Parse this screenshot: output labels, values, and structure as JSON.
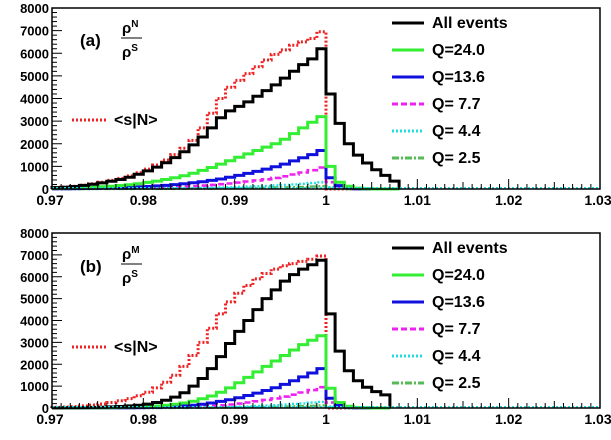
{
  "colors": {
    "all_events": "#000000",
    "q24": "#33ee33",
    "q13_6": "#1010dd",
    "q7_7": "#ee22ee",
    "q4_4": "#22dddd",
    "q2_5": "#55bb55",
    "sN": "#ee2222",
    "axis": "#000000",
    "background": "#ffffff"
  },
  "chart_data": [
    {
      "type": "line",
      "subtype": "step-histogram",
      "panel_label": "(a)",
      "ratio": {
        "numerator": "ρ",
        "numerator_sup": "N",
        "denominator": "ρ",
        "denominator_sup": "S"
      },
      "xlim": [
        0.97,
        1.03
      ],
      "ylim": [
        0,
        8000
      ],
      "x_ticks": [
        "0.97",
        "0.98",
        "0.99",
        "1",
        "1.01",
        "1.02",
        "1.03"
      ],
      "y_ticks": [
        "0",
        "1000",
        "2000",
        "3000",
        "4000",
        "5000",
        "6000",
        "7000",
        "8000"
      ],
      "bin_edges": [
        0.97,
        0.971,
        0.972,
        0.973,
        0.974,
        0.975,
        0.976,
        0.977,
        0.978,
        0.979,
        0.98,
        0.981,
        0.982,
        0.983,
        0.984,
        0.985,
        0.986,
        0.987,
        0.988,
        0.989,
        0.99,
        0.991,
        0.992,
        0.993,
        0.994,
        0.995,
        0.996,
        0.997,
        0.998,
        0.999,
        1.0,
        1.001,
        1.002,
        1.003,
        1.004,
        1.005,
        1.006,
        1.007,
        1.008,
        1.009,
        1.01,
        1.011,
        1.012,
        1.013,
        1.014,
        1.015,
        1.016,
        1.017,
        1.018,
        1.019,
        1.02,
        1.021,
        1.022,
        1.023,
        1.024,
        1.025,
        1.026,
        1.027,
        1.028,
        1.029,
        1.03
      ],
      "series": [
        {
          "name": "All events",
          "color_key": "all_events",
          "style": "solid",
          "legend_sample": "solid",
          "values": [
            60,
            80,
            110,
            160,
            210,
            270,
            340,
            420,
            520,
            650,
            800,
            970,
            1160,
            1390,
            1650,
            1950,
            2300,
            2700,
            3150,
            3450,
            3650,
            3850,
            4100,
            4350,
            4600,
            4900,
            5200,
            5500,
            5750,
            6200,
            4200,
            2900,
            2000,
            1500,
            1150,
            850,
            600,
            350
          ]
        },
        {
          "name": "Q=24.0",
          "color_key": "q24",
          "style": "solid",
          "legend_sample": "solid",
          "values": [
            25,
            35,
            45,
            60,
            80,
            100,
            125,
            155,
            190,
            235,
            290,
            350,
            420,
            500,
            590,
            700,
            820,
            950,
            1100,
            1250,
            1400,
            1550,
            1700,
            1850,
            2000,
            2200,
            2450,
            2700,
            2950,
            3200,
            1000,
            300,
            120,
            40,
            10,
            0,
            0,
            0
          ]
        },
        {
          "name": "Q=13.6",
          "color_key": "q13_6",
          "style": "solid",
          "legend_sample": "solid",
          "values": [
            10,
            14,
            18,
            24,
            32,
            40,
            50,
            62,
            76,
            92,
            110,
            135,
            160,
            195,
            230,
            275,
            320,
            380,
            440,
            520,
            600,
            690,
            780,
            880,
            980,
            1100,
            1240,
            1380,
            1520,
            1700,
            500,
            150,
            50,
            15,
            5,
            0,
            0,
            0
          ]
        },
        {
          "name": "Q= 7.7",
          "color_key": "q7_7",
          "style": "dashed",
          "legend_sample": "dashed",
          "values": [
            5,
            7,
            9,
            12,
            15,
            19,
            24,
            30,
            36,
            44,
            52,
            62,
            74,
            88,
            105,
            125,
            150,
            180,
            210,
            245,
            285,
            330,
            380,
            430,
            490,
            560,
            640,
            730,
            830,
            950,
            300,
            80,
            25,
            8,
            0,
            0,
            0,
            0
          ]
        },
        {
          "name": "Q= 4.4",
          "color_key": "q4_4",
          "style": "dotted",
          "legend_sample": "dotted",
          "values": [
            2,
            3,
            4,
            5,
            6,
            7,
            9,
            11,
            13,
            15,
            18,
            21,
            25,
            30,
            35,
            41,
            48,
            56,
            66,
            77,
            90,
            104,
            120,
            138,
            158,
            180,
            205,
            232,
            262,
            295,
            80,
            20,
            5,
            0,
            0,
            0,
            0,
            0
          ]
        },
        {
          "name": "Q= 2.5",
          "color_key": "q2_5",
          "style": "dashdot",
          "legend_sample": "dashdot",
          "values": [
            1,
            1,
            2,
            2,
            3,
            3,
            4,
            5,
            6,
            7,
            8,
            9,
            11,
            13,
            15,
            18,
            21,
            24,
            28,
            33,
            38,
            44,
            50,
            57,
            65,
            74,
            84,
            95,
            107,
            120,
            30,
            8,
            2,
            0,
            0,
            0,
            0,
            0
          ]
        },
        {
          "name": "<s|N>",
          "color_key": "sN",
          "style": "dotted",
          "legend_sample": "dotted",
          "values": [
            70,
            90,
            120,
            170,
            230,
            300,
            380,
            470,
            580,
            720,
            880,
            1060,
            1280,
            1520,
            1800,
            2150,
            2700,
            3350,
            4000,
            4500,
            4800,
            5100,
            5400,
            5700,
            5950,
            6150,
            6350,
            6500,
            6650,
            6950,
            0,
            0,
            0,
            0,
            0,
            0,
            0,
            0
          ]
        }
      ]
    },
    {
      "type": "line",
      "subtype": "step-histogram",
      "panel_label": "(b)",
      "ratio": {
        "numerator": "ρ",
        "numerator_sup": "M",
        "denominator": "ρ",
        "denominator_sup": "S"
      },
      "xlim": [
        0.97,
        1.03
      ],
      "ylim": [
        0,
        8000
      ],
      "x_ticks": [
        "0.97",
        "0.98",
        "0.99",
        "1",
        "1.01",
        "1.02",
        "1.03"
      ],
      "y_ticks": [
        "0",
        "1000",
        "2000",
        "3000",
        "4000",
        "5000",
        "6000",
        "7000",
        "8000"
      ],
      "bin_edges": [
        0.97,
        0.971,
        0.972,
        0.973,
        0.974,
        0.975,
        0.976,
        0.977,
        0.978,
        0.979,
        0.98,
        0.981,
        0.982,
        0.983,
        0.984,
        0.985,
        0.986,
        0.987,
        0.988,
        0.989,
        0.99,
        0.991,
        0.992,
        0.993,
        0.994,
        0.995,
        0.996,
        0.997,
        0.998,
        0.999,
        1.0,
        1.001,
        1.002,
        1.003,
        1.004,
        1.005,
        1.006,
        1.007,
        1.008,
        1.009,
        1.01,
        1.011,
        1.012,
        1.013,
        1.014,
        1.015,
        1.016,
        1.017,
        1.018,
        1.019,
        1.02,
        1.021,
        1.022,
        1.023,
        1.024,
        1.025,
        1.026,
        1.027,
        1.028,
        1.029,
        1.03
      ],
      "series": [
        {
          "name": "All events",
          "color_key": "all_events",
          "style": "solid",
          "legend_sample": "solid",
          "values": [
            5,
            8,
            12,
            18,
            26,
            36,
            50,
            70,
            95,
            130,
            180,
            250,
            350,
            500,
            700,
            1000,
            1350,
            1800,
            2350,
            2950,
            3500,
            4000,
            4500,
            5000,
            5400,
            5800,
            6100,
            6350,
            6550,
            6750,
            4300,
            2600,
            1700,
            1250,
            950,
            750,
            600
          ]
        },
        {
          "name": "Q=24.0",
          "color_key": "q24",
          "style": "solid",
          "legend_sample": "solid",
          "values": [
            2,
            3,
            5,
            7,
            10,
            14,
            19,
            26,
            36,
            50,
            68,
            92,
            125,
            170,
            230,
            310,
            420,
            550,
            720,
            920,
            1150,
            1400,
            1650,
            1900,
            2150,
            2400,
            2650,
            2900,
            3100,
            3300,
            900,
            250,
            80,
            25,
            8,
            0,
            0
          ]
        },
        {
          "name": "Q=13.6",
          "color_key": "q13_6",
          "style": "solid",
          "legend_sample": "solid",
          "values": [
            1,
            1,
            2,
            3,
            4,
            6,
            8,
            11,
            15,
            20,
            27,
            37,
            50,
            68,
            92,
            125,
            170,
            230,
            300,
            380,
            470,
            570,
            680,
            800,
            930,
            1080,
            1250,
            1420,
            1600,
            1800,
            450,
            120,
            40,
            12,
            4,
            0,
            0
          ]
        },
        {
          "name": "Q= 7.7",
          "color_key": "q7_7",
          "style": "dashed",
          "legend_sample": "dashed",
          "values": [
            0,
            1,
            1,
            1,
            2,
            3,
            4,
            5,
            7,
            9,
            12,
            16,
            22,
            30,
            40,
            54,
            72,
            96,
            125,
            160,
            200,
            250,
            305,
            370,
            440,
            520,
            610,
            710,
            820,
            950,
            250,
            70,
            20,
            6,
            0,
            0,
            0
          ]
        },
        {
          "name": "Q= 4.4",
          "color_key": "q4_4",
          "style": "dotted",
          "legend_sample": "dotted",
          "values": [
            0,
            0,
            0,
            1,
            1,
            1,
            2,
            2,
            3,
            4,
            5,
            6,
            8,
            11,
            14,
            18,
            23,
            30,
            38,
            48,
            60,
            74,
            90,
            108,
            130,
            155,
            182,
            212,
            245,
            280,
            70,
            18,
            5,
            0,
            0,
            0,
            0
          ]
        },
        {
          "name": "Q= 2.5",
          "color_key": "q2_5",
          "style": "dashdot",
          "legend_sample": "dashdot",
          "values": [
            0,
            0,
            0,
            0,
            0,
            1,
            1,
            1,
            1,
            2,
            2,
            3,
            4,
            5,
            6,
            8,
            10,
            13,
            16,
            20,
            25,
            31,
            38,
            46,
            55,
            65,
            76,
            88,
            101,
            115,
            28,
            7,
            2,
            0,
            0,
            0,
            0
          ]
        },
        {
          "name": "<s|N>",
          "color_key": "sN",
          "style": "dotted",
          "legend_sample": "dotted",
          "values": [
            30,
            45,
            65,
            95,
            135,
            185,
            250,
            330,
            430,
            560,
            720,
            920,
            1180,
            1500,
            1900,
            2400,
            3000,
            3650,
            4300,
            4850,
            5250,
            5600,
            5900,
            6150,
            6350,
            6500,
            6600,
            6700,
            6800,
            6950,
            0,
            0,
            0,
            0,
            0,
            0,
            0
          ]
        }
      ]
    }
  ]
}
